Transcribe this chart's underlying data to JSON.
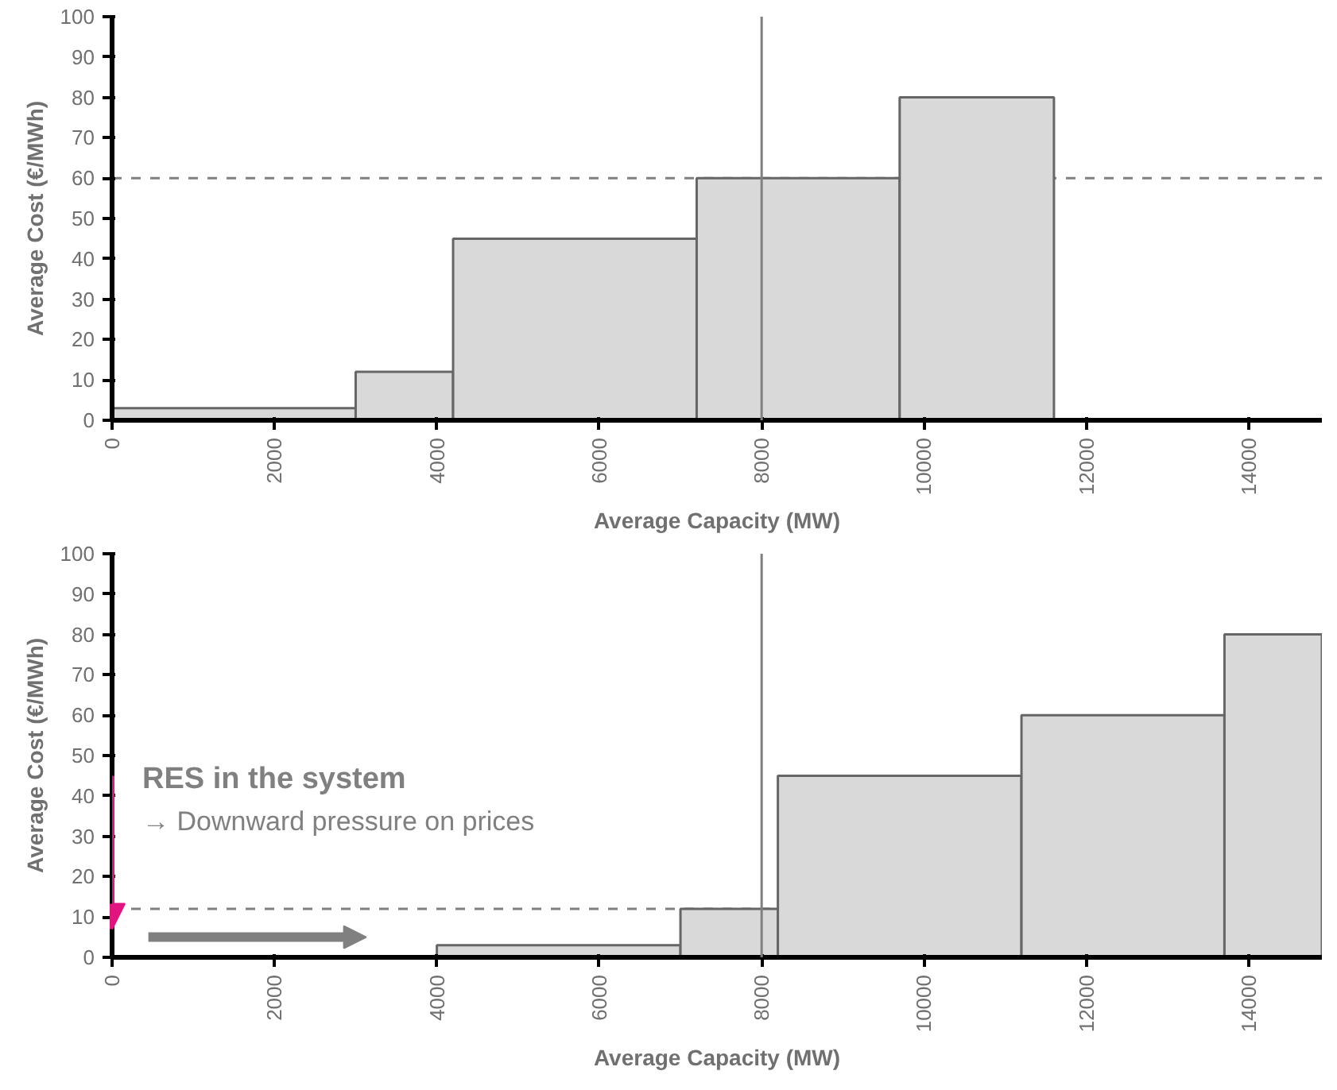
{
  "chart_data": [
    {
      "type": "histogram",
      "xlabel": "Average Capacity (MW)",
      "ylabel": "Average Cost (€/MWh)",
      "bins": [
        0,
        3000,
        4200,
        7200,
        9700,
        11600
      ],
      "values": [
        3,
        12,
        45,
        60,
        80
      ],
      "color": "#d9d9d9",
      "xlim": [
        0,
        14900
      ],
      "xticks": [
        0,
        2000,
        4000,
        6000,
        8000,
        10000,
        12000,
        14000
      ],
      "ylim": [
        0,
        100
      ],
      "yticks": [
        0,
        10,
        20,
        30,
        40,
        50,
        60,
        70,
        80,
        90,
        100
      ],
      "grid": false,
      "ref_lines": [
        {
          "axis": "y",
          "value": 60,
          "color": "#808080",
          "line_style": "dashed"
        },
        {
          "axis": "x",
          "value": 8000,
          "color": "#808080",
          "line_style": "solid"
        }
      ]
    },
    {
      "type": "histogram",
      "xlabel": "Average Capacity (MW)",
      "ylabel": "Average Cost (€/MWh)",
      "bins": [
        4000,
        7000,
        8200,
        11200,
        13700,
        14900
      ],
      "values": [
        3,
        12,
        45,
        60,
        80
      ],
      "color": "#d9d9d9",
      "xlim": [
        0,
        14900
      ],
      "xticks": [
        0,
        2000,
        4000,
        6000,
        8000,
        10000,
        12000,
        14000
      ],
      "ylim": [
        0,
        100
      ],
      "yticks": [
        0,
        10,
        20,
        30,
        40,
        50,
        60,
        70,
        80,
        90,
        100
      ],
      "grid": false,
      "annotations": [
        "RES in the system",
        "→ Downward pressure on prices"
      ],
      "ref_lines": [
        {
          "axis": "y",
          "value": 12,
          "color": "#808080",
          "line_style": "dashed"
        },
        {
          "axis": "x",
          "value": 8000,
          "color": "#808080",
          "line_style": "solid"
        }
      ]
    }
  ]
}
